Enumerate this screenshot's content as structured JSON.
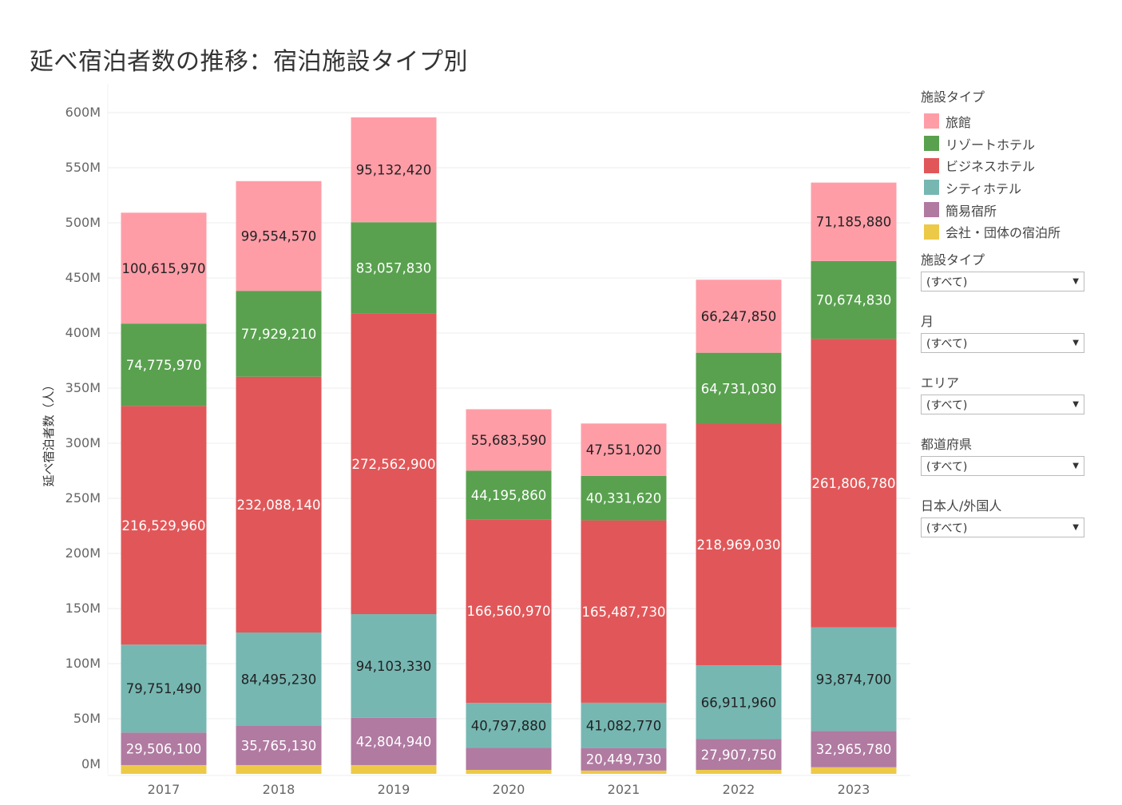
{
  "title": "延べ宿泊者数の推移：宿泊施設タイプ別",
  "legend": {
    "title": "施設タイプ",
    "items": [
      {
        "label": "旅館",
        "color": "#ff9da7"
      },
      {
        "label": "リゾートホテル",
        "color": "#59a14f"
      },
      {
        "label": "ビジネスホテル",
        "color": "#e15759"
      },
      {
        "label": "シティホテル",
        "color": "#76b7b2"
      },
      {
        "label": "簡易宿所",
        "color": "#b07aa1"
      },
      {
        "label": "会社・団体の宿泊所",
        "color": "#edc948"
      }
    ]
  },
  "filters": [
    {
      "label": "施設タイプ",
      "value": "(すべて)"
    },
    {
      "label": "月",
      "value": "(すべて)"
    },
    {
      "label": "エリア",
      "value": "(すべて)"
    },
    {
      "label": "都道府県",
      "value": "(すべて)"
    },
    {
      "label": "日本人/外国人",
      "value": "(すべて)"
    }
  ],
  "chart_data": {
    "type": "bar",
    "stacked": true,
    "title": "延べ宿泊者数の推移：宿泊施設タイプ別",
    "xlabel": "",
    "ylabel": "延べ宿泊者数（人）",
    "ylim": [
      0,
      600000000
    ],
    "yticks": [
      {
        "value": 0,
        "label": "0M"
      },
      {
        "value": 50000000,
        "label": "50M"
      },
      {
        "value": 100000000,
        "label": "100M"
      },
      {
        "value": 150000000,
        "label": "150M"
      },
      {
        "value": 200000000,
        "label": "200M"
      },
      {
        "value": 250000000,
        "label": "250M"
      },
      {
        "value": 300000000,
        "label": "300M"
      },
      {
        "value": 350000000,
        "label": "350M"
      },
      {
        "value": 400000000,
        "label": "400M"
      },
      {
        "value": 450000000,
        "label": "450M"
      },
      {
        "value": 500000000,
        "label": "500M"
      },
      {
        "value": 550000000,
        "label": "550M"
      },
      {
        "value": 600000000,
        "label": "600M"
      }
    ],
    "grid": true,
    "legend_position": "right",
    "categories": [
      "2017",
      "2018",
      "2019",
      "2020",
      "2021",
      "2022",
      "2023"
    ],
    "series": [
      {
        "name": "会社・団体の宿泊所",
        "color": "#edc948",
        "values": [
          8000000,
          8000000,
          8000000,
          3600000,
          3000000,
          3600000,
          6000000
        ],
        "labels": [
          "",
          "",
          "",
          "",
          "",
          "",
          ""
        ],
        "label_color": "#333"
      },
      {
        "name": "簡易宿所",
        "color": "#b07aa1",
        "values": [
          29506100,
          35765130,
          42804940,
          20000000,
          20449730,
          27907750,
          32965780
        ],
        "labels": [
          "29,506,100",
          "35,765,130",
          "42,804,940",
          "",
          "20,449,730",
          "27,907,750",
          "32,965,780"
        ],
        "label_color": "#fff"
      },
      {
        "name": "シティホテル",
        "color": "#76b7b2",
        "values": [
          79751490,
          84495230,
          94103330,
          40797880,
          41082770,
          66911960,
          93874700
        ],
        "labels": [
          "79,751,490",
          "84,495,230",
          "94,103,330",
          "40,797,880",
          "41,082,770",
          "66,911,960",
          "93,874,700"
        ],
        "label_color": "#222"
      },
      {
        "name": "ビジネスホテル",
        "color": "#e15759",
        "values": [
          216529960,
          232088140,
          272562900,
          166560970,
          165487730,
          218969030,
          261806780
        ],
        "labels": [
          "216,529,960",
          "232,088,140",
          "272,562,900",
          "166,560,970",
          "165,487,730",
          "218,969,030",
          "261,806,780"
        ],
        "label_color": "#fff"
      },
      {
        "name": "リゾートホテル",
        "color": "#59a14f",
        "values": [
          74775970,
          77929210,
          83057830,
          44195860,
          40331620,
          64731030,
          70674830
        ],
        "labels": [
          "74,775,970",
          "77,929,210",
          "83,057,830",
          "44,195,860",
          "40,331,620",
          "64,731,030",
          "70,674,830"
        ],
        "label_color": "#fff"
      },
      {
        "name": "旅館",
        "color": "#ff9da7",
        "values": [
          100615970,
          99554570,
          95132420,
          55683590,
          47551020,
          66247850,
          71185880
        ],
        "labels": [
          "100,615,970",
          "99,554,570",
          "95,132,420",
          "55,683,590",
          "47,551,020",
          "66,247,850",
          "71,185,880"
        ],
        "label_color": "#222"
      }
    ]
  }
}
